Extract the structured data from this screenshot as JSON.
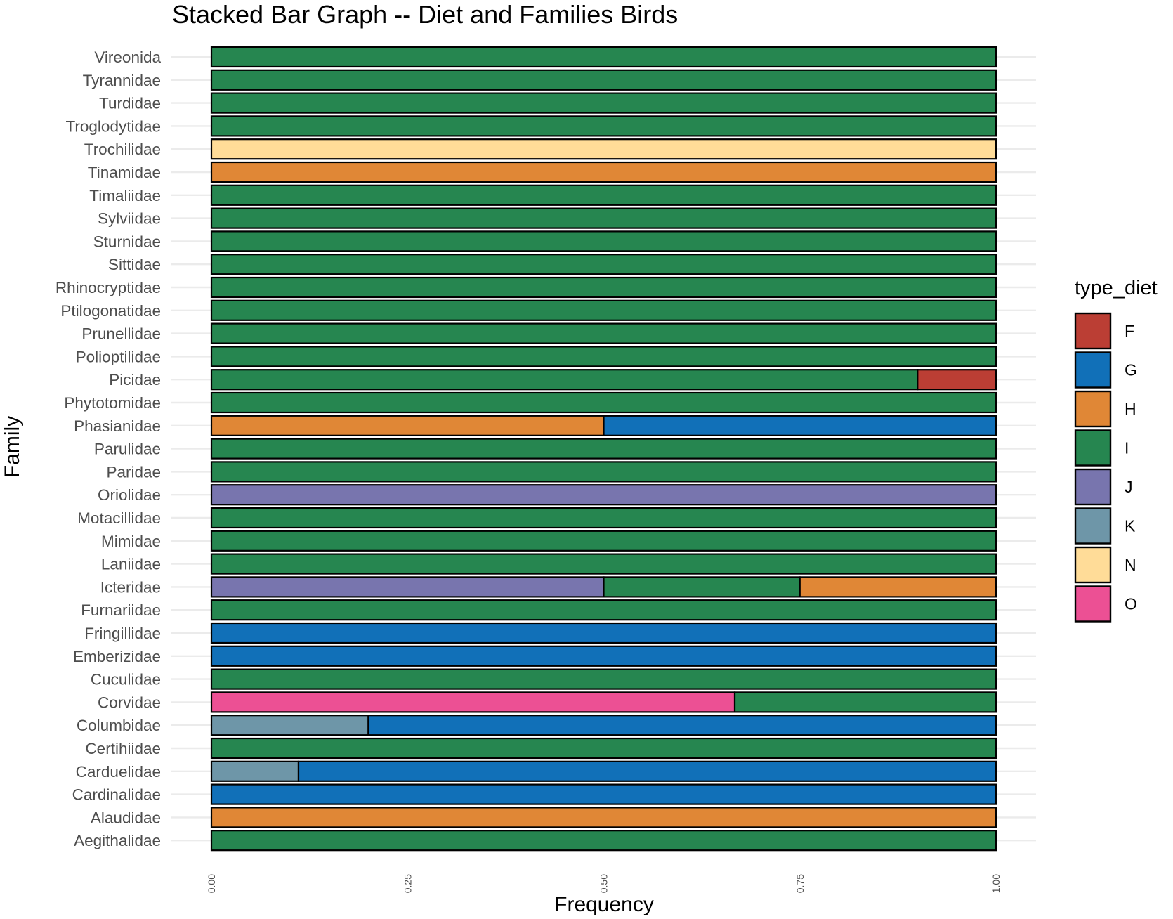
{
  "chart_data": {
    "type": "bar",
    "orientation": "horizontal",
    "stacked": true,
    "title": "Stacked Bar Graph -- Diet and Families Birds",
    "xlabel": "Frequency",
    "ylabel": "Family",
    "xlim": [
      0,
      1
    ],
    "x_ticks": [
      "0.00",
      "0.25",
      "0.50",
      "0.75",
      "1.00"
    ],
    "x_tick_values": [
      0,
      0.25,
      0.5,
      0.75,
      1
    ],
    "grid": true,
    "legend": {
      "title": "type_diet",
      "position": "right",
      "entries": [
        {
          "name": "F",
          "color": "#BB3E34"
        },
        {
          "name": "G",
          "color": "#1170B8"
        },
        {
          "name": "H",
          "color": "#E08736"
        },
        {
          "name": "I",
          "color": "#268650"
        },
        {
          "name": "J",
          "color": "#7875AE"
        },
        {
          "name": "K",
          "color": "#6E96A8"
        },
        {
          "name": "N",
          "color": "#FFDC98"
        },
        {
          "name": "O",
          "color": "#EC5094"
        }
      ]
    },
    "categories": [
      "Vireonida",
      "Tyrannidae",
      "Turdidae",
      "Troglodytidae",
      "Trochilidae",
      "Tinamidae",
      "Timaliidae",
      "Sylviidae",
      "Sturnidae",
      "Sittidae",
      "Rhinocryptidae",
      "Ptilogonatidae",
      "Prunellidae",
      "Polioptilidae",
      "Picidae",
      "Phytotomidae",
      "Phasianidae",
      "Parulidae",
      "Paridae",
      "Oriolidae",
      "Motacillidae",
      "Mimidae",
      "Laniidae",
      "Icteridae",
      "Furnariidae",
      "Fringillidae",
      "Emberizidae",
      "Cuculidae",
      "Corvidae",
      "Columbidae",
      "Certihiidae",
      "Carduelidae",
      "Cardinalidae",
      "Alaudidae",
      "Aegithalidae"
    ],
    "bars": [
      [
        {
          "diet": "I",
          "value": 1
        }
      ],
      [
        {
          "diet": "I",
          "value": 1
        }
      ],
      [
        {
          "diet": "I",
          "value": 1
        }
      ],
      [
        {
          "diet": "I",
          "value": 1
        }
      ],
      [
        {
          "diet": "N",
          "value": 1
        }
      ],
      [
        {
          "diet": "H",
          "value": 1
        }
      ],
      [
        {
          "diet": "I",
          "value": 1
        }
      ],
      [
        {
          "diet": "I",
          "value": 1
        }
      ],
      [
        {
          "diet": "I",
          "value": 1
        }
      ],
      [
        {
          "diet": "I",
          "value": 1
        }
      ],
      [
        {
          "diet": "I",
          "value": 1
        }
      ],
      [
        {
          "diet": "I",
          "value": 1
        }
      ],
      [
        {
          "diet": "I",
          "value": 1
        }
      ],
      [
        {
          "diet": "I",
          "value": 1
        }
      ],
      [
        {
          "diet": "I",
          "value": 0.9
        },
        {
          "diet": "F",
          "value": 0.1
        }
      ],
      [
        {
          "diet": "I",
          "value": 1
        }
      ],
      [
        {
          "diet": "H",
          "value": 0.5
        },
        {
          "diet": "G",
          "value": 0.5
        }
      ],
      [
        {
          "diet": "I",
          "value": 1
        }
      ],
      [
        {
          "diet": "I",
          "value": 1
        }
      ],
      [
        {
          "diet": "J",
          "value": 1
        }
      ],
      [
        {
          "diet": "I",
          "value": 1
        }
      ],
      [
        {
          "diet": "I",
          "value": 1
        }
      ],
      [
        {
          "diet": "I",
          "value": 1
        }
      ],
      [
        {
          "diet": "J",
          "value": 0.5
        },
        {
          "diet": "I",
          "value": 0.25
        },
        {
          "diet": "H",
          "value": 0.25
        }
      ],
      [
        {
          "diet": "I",
          "value": 1
        }
      ],
      [
        {
          "diet": "G",
          "value": 1
        }
      ],
      [
        {
          "diet": "G",
          "value": 1
        }
      ],
      [
        {
          "diet": "I",
          "value": 1
        }
      ],
      [
        {
          "diet": "O",
          "value": 0.667
        },
        {
          "diet": "I",
          "value": 0.333
        }
      ],
      [
        {
          "diet": "K",
          "value": 0.2
        },
        {
          "diet": "G",
          "value": 0.8
        }
      ],
      [
        {
          "diet": "I",
          "value": 1
        }
      ],
      [
        {
          "diet": "K",
          "value": 0.111
        },
        {
          "diet": "G",
          "value": 0.889
        }
      ],
      [
        {
          "diet": "G",
          "value": 1
        }
      ],
      [
        {
          "diet": "H",
          "value": 1
        }
      ],
      [
        {
          "diet": "I",
          "value": 1
        }
      ]
    ]
  }
}
